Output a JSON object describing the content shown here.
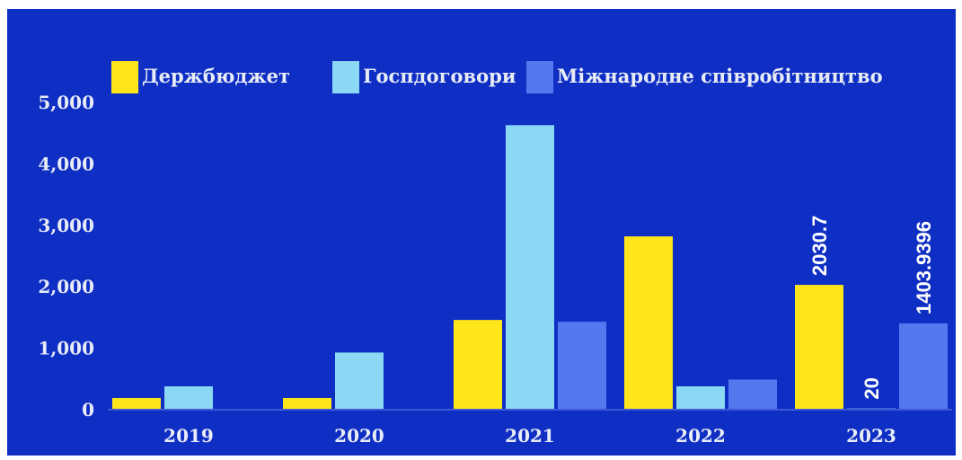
{
  "chart_data": {
    "type": "bar",
    "categories": [
      "2019",
      "2020",
      "2021",
      "2022",
      "2023"
    ],
    "series": [
      {
        "name": "Держбюджет",
        "color": "#ffe61a",
        "values": [
          190,
          190,
          1460,
          2820,
          2030.7
        ]
      },
      {
        "name": "Госпдоговори",
        "color": "#8ad8f4",
        "values": [
          380,
          930,
          4630,
          380,
          20
        ]
      },
      {
        "name": "Міжнародне співробітництво",
        "color": "#5577f0",
        "values": [
          null,
          null,
          1430,
          490,
          1403.9396
        ]
      }
    ],
    "ylim": [
      0,
      5000
    ],
    "yticks": [
      "0",
      "1,000",
      "2,000",
      "3,000",
      "4,000",
      "5,000"
    ],
    "ytick_values": [
      0,
      1000,
      2000,
      3000,
      4000,
      5000
    ],
    "data_labels": [
      {
        "category": "2023",
        "series": 0,
        "text": "2030.7"
      },
      {
        "category": "2023",
        "series": 1,
        "text": "20"
      },
      {
        "category": "2023",
        "series": 2,
        "text": "1403.9396"
      }
    ],
    "legend_position": "top",
    "grid": false
  }
}
